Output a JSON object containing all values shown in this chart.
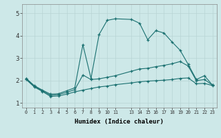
{
  "xlabel": "Humidex (Indice chaleur)",
  "bg_color": "#cde8e8",
  "grid_color": "#b8d4d4",
  "line_color": "#1a7070",
  "xlim": [
    -0.5,
    23.5
  ],
  "ylim": [
    0.8,
    5.4
  ],
  "xticks": [
    0,
    1,
    2,
    3,
    4,
    5,
    6,
    7,
    8,
    9,
    10,
    11,
    13,
    14,
    15,
    16,
    17,
    18,
    19,
    20,
    21,
    22,
    23
  ],
  "yticks": [
    1,
    2,
    3,
    4,
    5
  ],
  "line1_x": [
    0,
    1,
    2,
    3,
    4,
    5,
    6,
    7,
    8,
    9,
    10,
    11,
    13,
    14,
    15,
    16,
    17,
    18,
    19,
    20,
    21,
    22,
    23
  ],
  "line1_y": [
    2.1,
    1.78,
    1.58,
    1.4,
    1.42,
    1.55,
    1.68,
    3.6,
    2.1,
    4.05,
    4.68,
    4.75,
    4.72,
    4.55,
    3.82,
    4.22,
    4.12,
    3.72,
    3.35,
    2.72,
    2.05,
    2.22,
    1.8
  ],
  "line2_x": [
    0,
    1,
    2,
    3,
    4,
    5,
    6,
    7,
    8,
    9,
    10,
    11,
    13,
    14,
    15,
    16,
    17,
    18,
    19,
    20,
    21,
    22,
    23
  ],
  "line2_y": [
    2.08,
    1.75,
    1.55,
    1.35,
    1.38,
    1.48,
    1.6,
    2.25,
    2.05,
    2.08,
    2.15,
    2.22,
    2.42,
    2.52,
    2.55,
    2.62,
    2.68,
    2.75,
    2.85,
    2.65,
    2.0,
    2.05,
    1.8
  ],
  "line3_x": [
    0,
    1,
    2,
    3,
    4,
    5,
    6,
    7,
    8,
    9,
    10,
    11,
    13,
    14,
    15,
    16,
    17,
    18,
    19,
    20,
    21,
    22,
    23
  ],
  "line3_y": [
    2.05,
    1.72,
    1.52,
    1.3,
    1.32,
    1.4,
    1.5,
    1.58,
    1.65,
    1.72,
    1.76,
    1.82,
    1.9,
    1.95,
    1.98,
    2.0,
    2.02,
    2.05,
    2.1,
    2.12,
    1.86,
    1.88,
    1.78
  ]
}
